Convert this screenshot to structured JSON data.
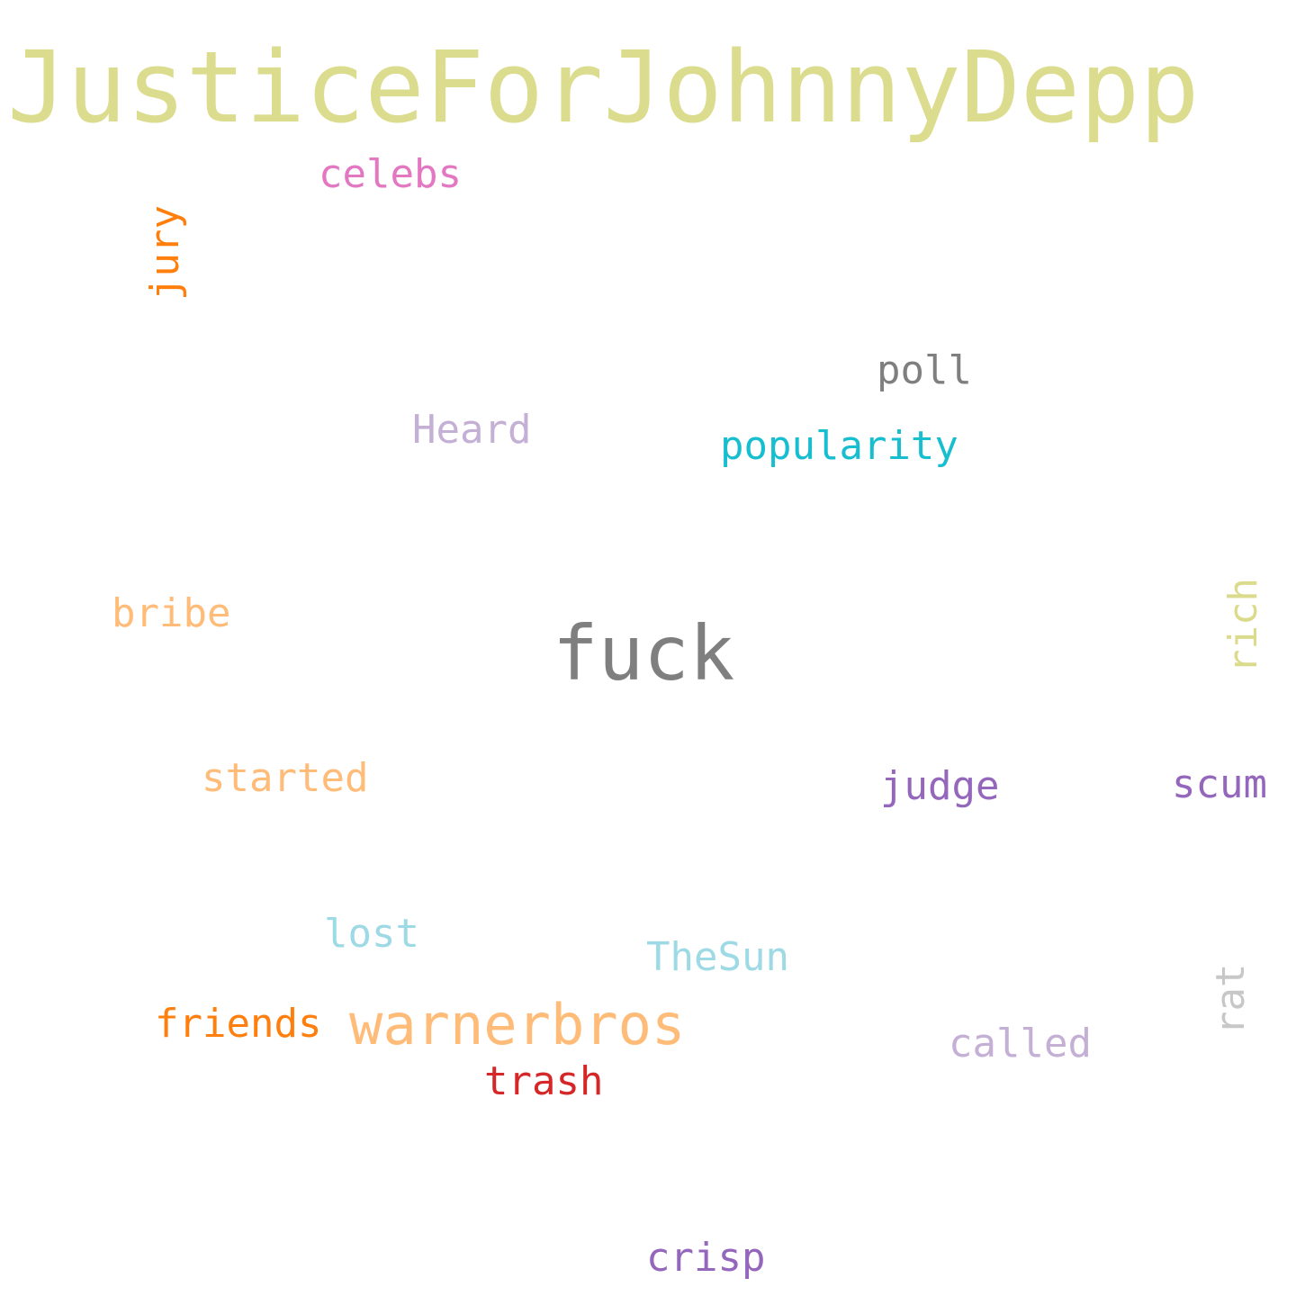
{
  "wordcloud": {
    "background": "#ffffff",
    "words": [
      {
        "text": "JusticeForJohnnyDepp",
        "color": "#dbdc8d"
      },
      {
        "text": "celebs",
        "color": "#e377c2"
      },
      {
        "text": "jury",
        "color": "#ff7f0e",
        "orientation": "vertical"
      },
      {
        "text": "poll",
        "color": "#7f7f7f"
      },
      {
        "text": "Heard",
        "color": "#c5b0d5"
      },
      {
        "text": "popularity",
        "color": "#17becf"
      },
      {
        "text": "bribe",
        "color": "#ffbb78"
      },
      {
        "text": "fuck",
        "color": "#7f7f7f"
      },
      {
        "text": "rich",
        "color": "#dbdb8d",
        "orientation": "vertical"
      },
      {
        "text": "started",
        "color": "#ffbb78"
      },
      {
        "text": "judge",
        "color": "#9467bd"
      },
      {
        "text": "scum",
        "color": "#9467bd"
      },
      {
        "text": "lost",
        "color": "#9edae5"
      },
      {
        "text": "TheSun",
        "color": "#9edae5"
      },
      {
        "text": "rat",
        "color": "#c7c7c7",
        "orientation": "vertical"
      },
      {
        "text": "friends",
        "color": "#ff7f0e"
      },
      {
        "text": "warnerbros",
        "color": "#ffbb78"
      },
      {
        "text": "called",
        "color": "#c5b0d5"
      },
      {
        "text": "trash",
        "color": "#d62728"
      },
      {
        "text": "crisp",
        "color": "#9467bd"
      }
    ]
  }
}
